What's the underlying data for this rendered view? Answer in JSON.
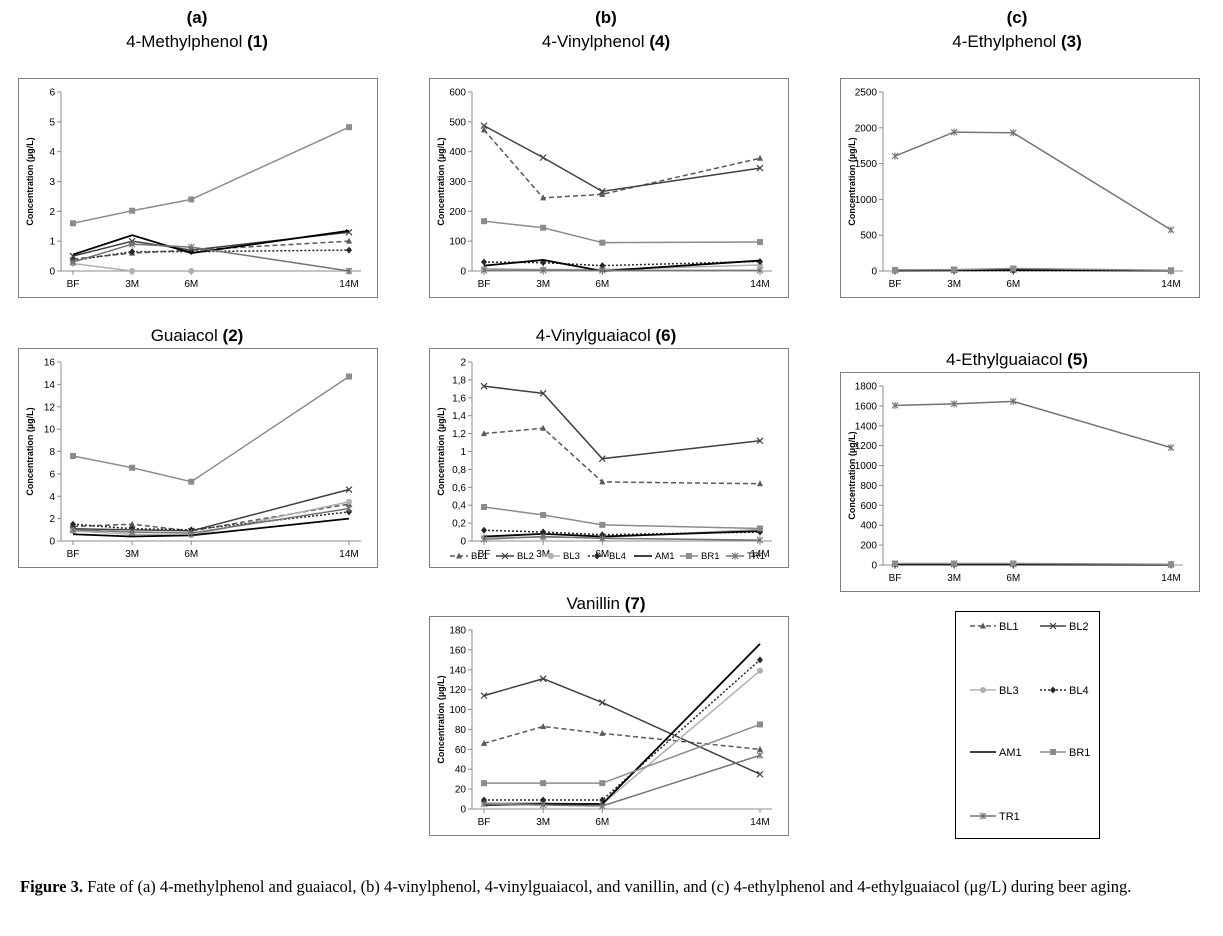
{
  "columns": [
    {
      "id": "a",
      "label": "(a)"
    },
    {
      "id": "b",
      "label": "(b)"
    },
    {
      "id": "c",
      "label": "(c)"
    }
  ],
  "series_legend": [
    "BL1",
    "BL2",
    "BL3",
    "BL4",
    "AM1",
    "BR1",
    "TR1"
  ],
  "caption": {
    "label": "Figure 3.",
    "text": " Fate of (a) 4-methylphenol and guaiacol, (b) 4-vinylphenol, 4-vinylguaiacol, and vanillin, and (c) 4-ethylphenol and 4-ethylguaiacol (μg/L) during beer aging."
  },
  "styles": {
    "BL1": {
      "color": "#595959",
      "dash": "5,3",
      "marker": "triangle"
    },
    "BL2": {
      "color": "#404040",
      "dash": "",
      "marker": "x"
    },
    "BL3": {
      "color": "#b0b0b0",
      "dash": "",
      "marker": "circle"
    },
    "BL4": {
      "color": "#262626",
      "dash": "2,2",
      "marker": "diamond"
    },
    "AM1": {
      "color": "#000000",
      "dash": "",
      "marker": "none"
    },
    "BR1": {
      "color": "#8c8c8c",
      "dash": "",
      "marker": "square"
    },
    "TR1": {
      "color": "#737373",
      "dash": "",
      "marker": "star"
    }
  },
  "chart_data": [
    {
      "id": "methylphenol",
      "type": "line",
      "title": "4-Methylphenol",
      "title_num": "(1)",
      "ylabel": "Concentration (µg/L)",
      "categories": [
        "BF",
        "3M",
        "6M",
        "14M"
      ],
      "x": [
        0,
        3,
        6,
        14
      ],
      "ylim": [
        0,
        6
      ],
      "yticks": [
        0,
        1,
        2,
        3,
        4,
        5,
        6
      ],
      "tick_decimal_comma": false,
      "series": [
        {
          "name": "BL1",
          "values": [
            0.4,
            0.6,
            0.7,
            1.0
          ]
        },
        {
          "name": "BL2",
          "values": [
            0.5,
            1.0,
            0.7,
            1.3
          ]
        },
        {
          "name": "BL3",
          "values": [
            0.25,
            0.0,
            0.0,
            0.0
          ]
        },
        {
          "name": "BL4",
          "values": [
            0.35,
            0.65,
            0.65,
            0.7
          ]
        },
        {
          "name": "AM1",
          "values": [
            0.55,
            1.2,
            0.6,
            1.35
          ]
        },
        {
          "name": "BR1",
          "values": [
            1.6,
            2.02,
            2.4,
            4.82
          ]
        },
        {
          "name": "TR1",
          "values": [
            0.3,
            0.9,
            0.8,
            0.0
          ]
        }
      ]
    },
    {
      "id": "guaiacol",
      "type": "line",
      "title": "Guaiacol",
      "title_num": "(2)",
      "ylabel": "Concentration (µg/L)",
      "categories": [
        "BF",
        "3M",
        "6M",
        "14M"
      ],
      "x": [
        0,
        3,
        6,
        14
      ],
      "ylim": [
        0,
        16
      ],
      "yticks": [
        0,
        2,
        4,
        6,
        8,
        10,
        12,
        14,
        16
      ],
      "tick_decimal_comma": false,
      "series": [
        {
          "name": "BL1",
          "values": [
            1.3,
            1.5,
            0.9,
            3.3
          ]
        },
        {
          "name": "BL2",
          "values": [
            1.1,
            1.0,
            0.9,
            4.6
          ]
        },
        {
          "name": "BL3",
          "values": [
            0.9,
            0.6,
            0.5,
            3.5
          ]
        },
        {
          "name": "BL4",
          "values": [
            1.5,
            1.1,
            1.0,
            2.6
          ]
        },
        {
          "name": "AM1",
          "values": [
            0.6,
            0.4,
            0.5,
            2.0
          ]
        },
        {
          "name": "BR1",
          "values": [
            7.6,
            6.55,
            5.3,
            14.7
          ]
        },
        {
          "name": "TR1",
          "values": [
            1.0,
            0.8,
            0.7,
            2.9
          ]
        }
      ]
    },
    {
      "id": "vinylphenol",
      "type": "line",
      "title": "4-Vinylphenol",
      "title_num": "(4)",
      "ylabel": "Concentration (µg/L)",
      "categories": [
        "BF",
        "3M",
        "6M",
        "14M"
      ],
      "x": [
        0,
        3,
        6,
        14
      ],
      "ylim": [
        0,
        600
      ],
      "yticks": [
        0,
        100,
        200,
        300,
        400,
        500,
        600
      ],
      "tick_decimal_comma": false,
      "series": [
        {
          "name": "BL1",
          "values": [
            473,
            245,
            257,
            378
          ]
        },
        {
          "name": "BL2",
          "values": [
            487,
            380,
            267,
            345
          ]
        },
        {
          "name": "BL3",
          "values": [
            8,
            5,
            5,
            20
          ]
        },
        {
          "name": "BL4",
          "values": [
            30,
            28,
            18,
            32
          ]
        },
        {
          "name": "AM1",
          "values": [
            18,
            37,
            0,
            35
          ]
        },
        {
          "name": "BR1",
          "values": [
            167,
            145,
            95,
            97
          ]
        },
        {
          "name": "TR1",
          "values": [
            2,
            3,
            2,
            2
          ]
        }
      ]
    },
    {
      "id": "vinylguaiacol",
      "type": "line",
      "title": "4-Vinylguaiacol",
      "title_num": "(6)",
      "ylabel": "Concentration (µg/L)",
      "categories": [
        "BF",
        "3M",
        "6M",
        "14M"
      ],
      "x": [
        0,
        3,
        6,
        14
      ],
      "ylim": [
        0,
        2
      ],
      "yticks": [
        0,
        0.2,
        0.4,
        0.6,
        0.8,
        1,
        1.2,
        1.4,
        1.6,
        1.8,
        2
      ],
      "tick_decimal_comma": true,
      "series": [
        {
          "name": "BL1",
          "values": [
            1.2,
            1.26,
            0.66,
            0.64
          ]
        },
        {
          "name": "BL2",
          "values": [
            1.73,
            1.65,
            0.92,
            1.12
          ]
        },
        {
          "name": "BL3",
          "values": [
            0.04,
            0.04,
            0.04,
            0.13
          ]
        },
        {
          "name": "BL4",
          "values": [
            0.12,
            0.1,
            0.07,
            0.1
          ]
        },
        {
          "name": "AM1",
          "values": [
            0.05,
            0.08,
            0.05,
            0.11
          ]
        },
        {
          "name": "BR1",
          "values": [
            0.38,
            0.29,
            0.18,
            0.14
          ]
        },
        {
          "name": "TR1",
          "values": [
            0.02,
            0.05,
            0.03,
            0.01
          ]
        }
      ]
    },
    {
      "id": "vanillin",
      "type": "line",
      "title": "Vanillin",
      "title_num": "(7)",
      "ylabel": "Concentration (µg/L)",
      "categories": [
        "BF",
        "3M",
        "6M",
        "14M"
      ],
      "x": [
        0,
        3,
        6,
        14
      ],
      "ylim": [
        0,
        180
      ],
      "yticks": [
        0,
        20,
        40,
        60,
        80,
        100,
        120,
        140,
        160,
        180
      ],
      "tick_decimal_comma": false,
      "series": [
        {
          "name": "BL1",
          "values": [
            66,
            83,
            76,
            60
          ]
        },
        {
          "name": "BL2",
          "values": [
            114,
            131,
            107,
            35
          ]
        },
        {
          "name": "BL3",
          "values": [
            6,
            6,
            5,
            139
          ]
        },
        {
          "name": "BL4",
          "values": [
            9,
            9,
            9,
            150
          ]
        },
        {
          "name": "AM1",
          "values": [
            4,
            5,
            5,
            166
          ]
        },
        {
          "name": "BR1",
          "values": [
            26,
            26,
            26,
            85
          ]
        },
        {
          "name": "TR1",
          "values": [
            5,
            4,
            3,
            54
          ]
        }
      ]
    },
    {
      "id": "ethylphenol",
      "type": "line",
      "title": "4-Ethylphenol",
      "title_num": "(3)",
      "ylabel": "Concentration (µg/L)",
      "categories": [
        "BF",
        "3M",
        "6M",
        "14M"
      ],
      "x": [
        0,
        3,
        6,
        14
      ],
      "ylim": [
        0,
        2500
      ],
      "yticks": [
        0,
        500,
        1000,
        1500,
        2000,
        2500
      ],
      "tick_decimal_comma": false,
      "series": [
        {
          "name": "BL1",
          "values": [
            10,
            10,
            15,
            5
          ]
        },
        {
          "name": "BL2",
          "values": [
            10,
            15,
            20,
            5
          ]
        },
        {
          "name": "BL3",
          "values": [
            5,
            10,
            10,
            5
          ]
        },
        {
          "name": "BL4",
          "values": [
            5,
            5,
            5,
            5
          ]
        },
        {
          "name": "AM1",
          "values": [
            5,
            10,
            15,
            5
          ]
        },
        {
          "name": "BR1",
          "values": [
            15,
            20,
            35,
            10
          ]
        },
        {
          "name": "TR1",
          "values": [
            1605,
            1940,
            1930,
            575
          ]
        }
      ]
    },
    {
      "id": "ethylguaiacol",
      "type": "line",
      "title": "4-Ethylguaiacol",
      "title_num": "(5)",
      "ylabel": "Concentration (µg/L)",
      "categories": [
        "BF",
        "3M",
        "6M",
        "14M"
      ],
      "x": [
        0,
        3,
        6,
        14
      ],
      "ylim": [
        0,
        1800
      ],
      "yticks": [
        0,
        200,
        400,
        600,
        800,
        1000,
        1200,
        1400,
        1600,
        1800
      ],
      "tick_decimal_comma": false,
      "series": [
        {
          "name": "BL1",
          "values": [
            10,
            10,
            12,
            5
          ]
        },
        {
          "name": "BL2",
          "values": [
            8,
            10,
            10,
            5
          ]
        },
        {
          "name": "BL3",
          "values": [
            5,
            5,
            5,
            3
          ]
        },
        {
          "name": "BL4",
          "values": [
            5,
            5,
            5,
            3
          ]
        },
        {
          "name": "AM1",
          "values": [
            5,
            5,
            5,
            3
          ]
        },
        {
          "name": "BR1",
          "values": [
            15,
            15,
            15,
            8
          ]
        },
        {
          "name": "TR1",
          "values": [
            1605,
            1620,
            1645,
            1180
          ]
        }
      ]
    }
  ]
}
